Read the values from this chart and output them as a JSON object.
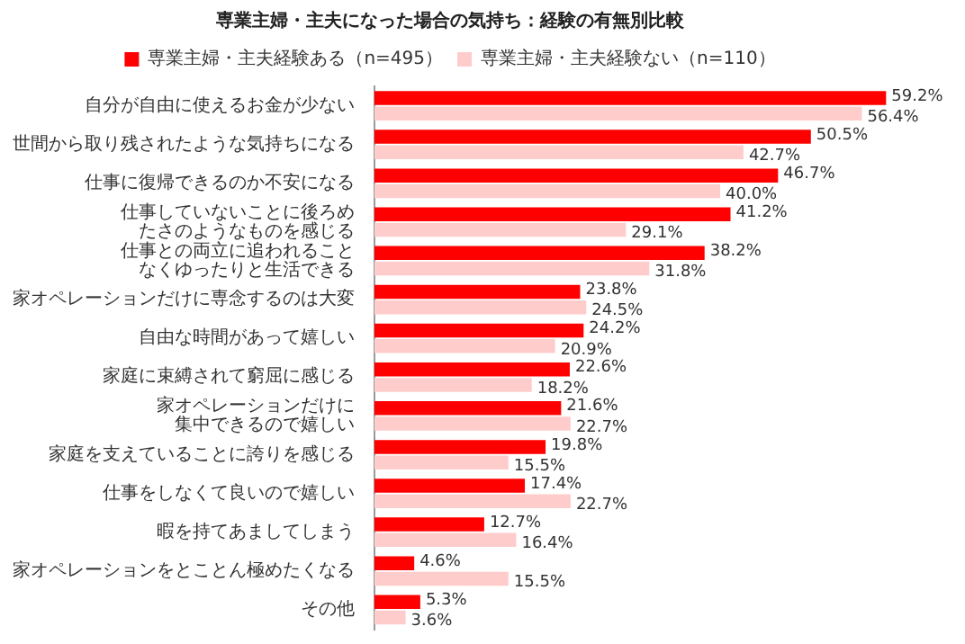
{
  "chart_data": {
    "type": "bar",
    "orientation": "horizontal",
    "title": "専業主婦・主夫になった場合の気持ち：経験の有無別比較",
    "categories": [
      "自分が自由に使えるお金が少ない",
      "世間から取り残されたような気持ちになる",
      "仕事に復帰できるのか不安になる",
      "仕事していないことに後ろめたさのようなものを感じる",
      "仕事との両立に追われることなくゆったりと生活できる",
      "家オペレーションだけに専念するのは大変",
      "自由な時間があって嬉しい",
      "家庭に束縛されて窮屈に感じる",
      "家オペレーションだけに集中できるので嬉しい",
      "家庭を支えていることに誇りを感じる",
      "仕事をしなくて良いので嬉しい",
      "暇を持てあましてしまう",
      "家オペレーションをとことん極めたくなる",
      "その他"
    ],
    "series": [
      {
        "name": "専業主婦・主夫経験ある（n=495）",
        "color": "#ff0000",
        "values": [
          59.2,
          50.5,
          46.7,
          41.2,
          38.2,
          23.8,
          24.2,
          22.6,
          21.6,
          19.8,
          17.4,
          12.7,
          4.6,
          5.3
        ],
        "value_labels": [
          "59.2%",
          "50.5%",
          "46.7%",
          "41.2%",
          "38.2%",
          "23.8%",
          "24.2%",
          "22.6%",
          "21.6%",
          "19.8%",
          "17.4%",
          "12.7%",
          "4.6%",
          "5.3%"
        ]
      },
      {
        "name": "専業主婦・主夫経験ない（n=110）",
        "color": "#ffcccc",
        "values": [
          56.4,
          42.7,
          40.0,
          29.1,
          31.8,
          24.5,
          20.9,
          18.2,
          22.7,
          15.5,
          22.7,
          16.4,
          15.5,
          3.6
        ],
        "value_labels": [
          "56.4%",
          "42.7%",
          "40.0%",
          "29.1%",
          "31.8%",
          "24.5%",
          "20.9%",
          "18.2%",
          "22.7%",
          "15.5%",
          "22.7%",
          "16.4%",
          "15.5%",
          "3.6%"
        ]
      }
    ],
    "legend": "top"
  }
}
